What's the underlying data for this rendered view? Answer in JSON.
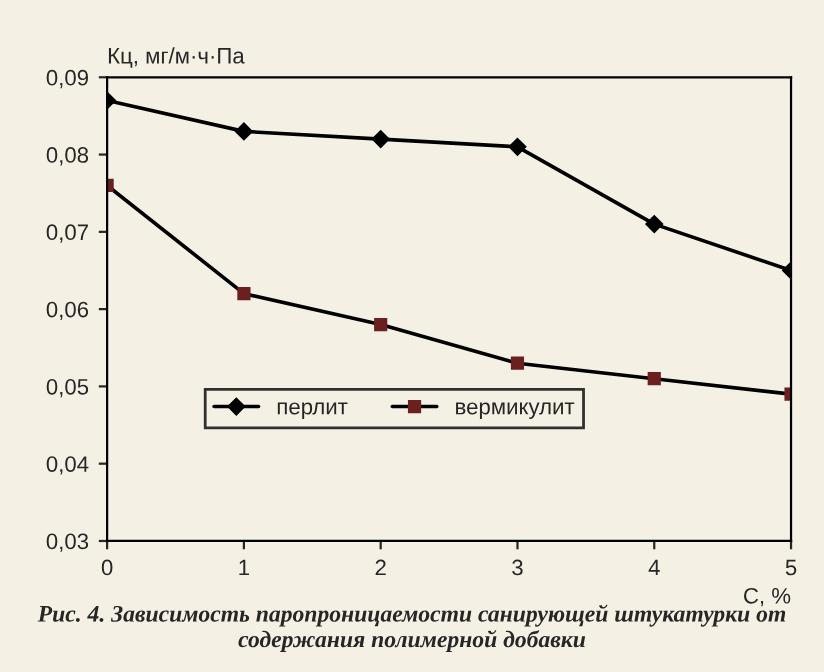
{
  "chart_data": {
    "type": "line",
    "ylabel": "Кц, мг/м·ч·Па",
    "xlabel": "С, %",
    "annotations": [
      "Рис. 4. Зависимость паропроницаемости санирующей штукатурки от содержания полимерной добавки"
    ],
    "x": [
      0,
      1,
      2,
      3,
      4,
      5
    ],
    "series": [
      {
        "name": "перлит",
        "color": "#000000",
        "marker": "diamond",
        "values": [
          0.087,
          0.083,
          0.082,
          0.081,
          0.071,
          0.065
        ]
      },
      {
        "name": "вермикулит",
        "color": "#6b1f1f",
        "marker": "square",
        "values": [
          0.076,
          0.062,
          0.058,
          0.053,
          0.051,
          0.049
        ]
      }
    ],
    "xlim": [
      0,
      5
    ],
    "xticks": [
      0,
      1,
      2,
      3,
      4,
      5
    ],
    "ylim": [
      0.03,
      0.09
    ],
    "yticks": [
      {
        "value": 0.03,
        "label": "0,03"
      },
      {
        "value": 0.04,
        "label": "0,04"
      },
      {
        "value": 0.05,
        "label": "0,05"
      },
      {
        "value": 0.06,
        "label": "0,06"
      },
      {
        "value": 0.07,
        "label": "0,07"
      },
      {
        "value": 0.08,
        "label": "0,08"
      },
      {
        "value": 0.09,
        "label": "0,09"
      }
    ],
    "grid": false,
    "legend": "bottom",
    "line_style": "solid"
  }
}
